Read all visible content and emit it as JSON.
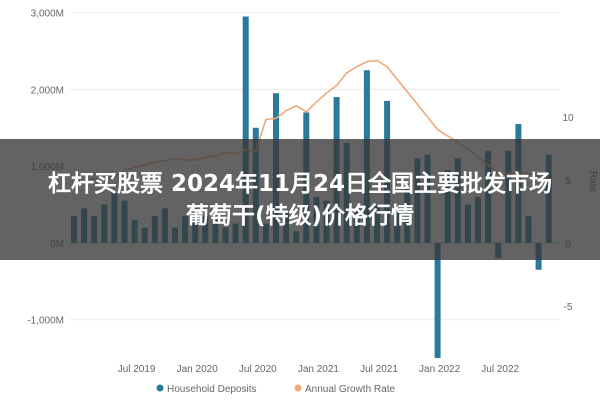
{
  "chart_data": {
    "type": "bar+line",
    "left_axis": {
      "ticks": [
        3000,
        2000,
        1000,
        0,
        -1000
      ],
      "tick_labels": [
        "3,000M",
        "2,000M",
        "1,000M",
        "0M",
        "-1,000M"
      ],
      "ylim": [
        -1500,
        3100
      ]
    },
    "right_axis": {
      "ticks": [
        10,
        5,
        0,
        -5
      ],
      "tick_labels": [
        "10",
        "5",
        "0",
        "-5"
      ],
      "ylim": [
        -9.15,
        18.9
      ],
      "label": "Rate"
    },
    "x_labels": [
      "Jul 2019",
      "Jan 2020",
      "Jul 2020",
      "Jan 2021",
      "Jul 2021",
      "Jan 2022",
      "Jul 2022"
    ],
    "x_label_month_index": [
      6,
      12,
      18,
      24,
      30,
      36,
      42
    ],
    "series": [
      {
        "name": "Household Deposits",
        "kind": "bar",
        "color": "#2b7a9c",
        "values": [
          350,
          450,
          350,
          500,
          650,
          550,
          300,
          200,
          350,
          450,
          200,
          350,
          450,
          350,
          300,
          200,
          250,
          2950,
          1500,
          250,
          1950,
          400,
          150,
          1700,
          600,
          550,
          1900,
          1300,
          450,
          2250,
          500,
          1850,
          450,
          700,
          1100,
          1150,
          -1500,
          950,
          1100,
          500,
          600,
          1200,
          -200,
          1200,
          1550,
          350,
          -350,
          1150
        ]
      },
      {
        "name": "Annual Growth Rate",
        "kind": "line",
        "color": "#f0a878",
        "values": [
          4.9,
          4.9,
          5.1,
          5.2,
          5.3,
          5.7,
          6.0,
          6.2,
          6.4,
          6.5,
          6.7,
          6.6,
          6.6,
          6.8,
          6.9,
          7.2,
          7.1,
          7.4,
          7.3,
          9.8,
          9.9,
          10.5,
          10.9,
          10.4,
          11.2,
          11.9,
          12.5,
          13.5,
          14.0,
          14.4,
          14.5,
          14.0,
          13.0,
          12.0,
          11.0,
          10.0,
          9.0,
          8.5,
          8.0,
          7.5,
          6.8,
          6.2,
          5.5,
          5.5,
          5.6,
          5.5,
          5.3,
          5.2
        ]
      }
    ]
  },
  "legend": [
    {
      "label": "Household Deposits",
      "color": "#2b7a9c"
    },
    {
      "label": "Annual Growth Rate",
      "color": "#f0a878"
    }
  ],
  "overlay": {
    "line1": "杠杆买股票 2024年11月24日全国主要批发市场",
    "line2": "葡萄干(特级)价格行情"
  }
}
